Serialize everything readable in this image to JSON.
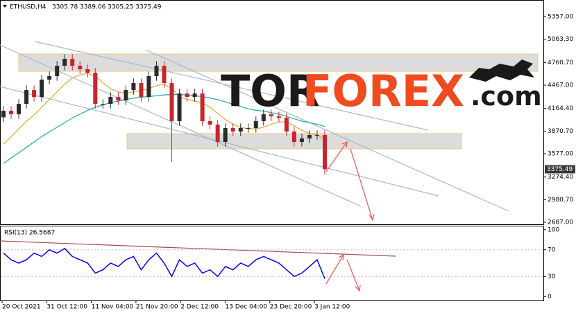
{
  "header": {
    "symbol": "ETHUSD,H4",
    "ohlc": "3305.78 3389.06 3305.25 3375.49"
  },
  "logo": {
    "part1": "TOR",
    "part2": "FOREX",
    "part3": ".com"
  },
  "chart_data": [
    {
      "type": "candlestick",
      "ylim": [
        2651,
        5555
      ],
      "yticks": [
        {
          "value": 5357,
          "label": "5357.00"
        },
        {
          "value": 5063.3,
          "label": "5063.30"
        },
        {
          "value": 4760.7,
          "label": "4760.70"
        },
        {
          "value": 4467,
          "label": "4467.00"
        },
        {
          "value": 4164.4,
          "label": "4164.40"
        },
        {
          "value": 3870.7,
          "label": "3870.70"
        },
        {
          "value": 3577,
          "label": "3577.00"
        },
        {
          "value": 3274.4,
          "label": "3274.40"
        },
        {
          "value": 2980.7,
          "label": "2980.70"
        },
        {
          "value": 2687,
          "label": "2687.00"
        }
      ],
      "time_labels": [
        "20 Oct 2021",
        "31 Oct 12:00",
        "11 Nov 04:00",
        "21 Nov 20:00",
        "2 Dec 12:00",
        "13 Dec 04:00",
        "23 Dec 20:00",
        "3 Jan 12:00"
      ],
      "up_color": "#2b2b2b",
      "down_color": "#c8252c",
      "open": [
        4050,
        4134,
        4089,
        4224,
        4404,
        4314,
        4539,
        4584,
        4719,
        4809,
        4719,
        4674,
        4629,
        4224,
        4224,
        4314,
        4269,
        4404,
        4494,
        4314,
        4584,
        4719,
        4494,
        4000,
        4359,
        4314,
        4359,
        4000,
        3955,
        3730,
        3910,
        3865,
        3910,
        3910,
        4000,
        4089,
        4062,
        4044,
        3865,
        3730,
        3775,
        3820,
        3820
      ],
      "high": [
        4194,
        4194,
        4284,
        4464,
        4464,
        4599,
        4644,
        4779,
        4869,
        4869,
        4779,
        4734,
        4689,
        4284,
        4374,
        4374,
        4464,
        4554,
        4554,
        4644,
        4779,
        4779,
        4554,
        4419,
        4419,
        4419,
        4419,
        4060,
        4015,
        3970,
        3970,
        3970,
        3970,
        4060,
        4149,
        4149,
        4122,
        4104,
        3925,
        3835,
        3880,
        3880,
        3880
      ],
      "low": [
        3990,
        4029,
        4029,
        4164,
        4254,
        4254,
        4479,
        4524,
        4659,
        4659,
        4614,
        4569,
        4164,
        4164,
        4164,
        4209,
        4209,
        4344,
        4254,
        4254,
        4524,
        4434,
        3470,
        3940,
        4254,
        4254,
        3940,
        3895,
        3670,
        3670,
        3805,
        3805,
        3850,
        3850,
        3940,
        4002,
        3984,
        3805,
        3670,
        3670,
        3715,
        3760,
        3305
      ],
      "close": [
        4134,
        4089,
        4224,
        4404,
        4314,
        4539,
        4584,
        4719,
        4809,
        4719,
        4674,
        4629,
        4224,
        4224,
        4314,
        4269,
        4404,
        4494,
        4314,
        4584,
        4719,
        4494,
        4000,
        4359,
        4314,
        4359,
        4000,
        3955,
        3730,
        3910,
        3865,
        3910,
        3910,
        4000,
        4089,
        4062,
        4044,
        3865,
        3730,
        3775,
        3820,
        3820,
        3375.49
      ],
      "price_tag": "3375.49",
      "series": [
        {
          "color": "#e8a33c",
          "values": [
            3700,
            3800,
            3900,
            4000,
            4080,
            4180,
            4280,
            4380,
            4480,
            4560,
            4600,
            4620,
            4580,
            4500,
            4420,
            4380,
            4360,
            4380,
            4400,
            4420,
            4460,
            4480,
            4420,
            4320,
            4280,
            4260,
            4240,
            4180,
            4100,
            4020,
            3960,
            3920,
            3900,
            3900,
            3920,
            3960,
            3990,
            3990,
            3940,
            3880,
            3840,
            3820,
            3760
          ]
        },
        {
          "color": "#1fa6a6",
          "values": [
            3450,
            3520,
            3590,
            3660,
            3730,
            3800,
            3860,
            3920,
            3980,
            4040,
            4090,
            4140,
            4180,
            4210,
            4240,
            4260,
            4280,
            4300,
            4310,
            4320,
            4330,
            4340,
            4345,
            4345,
            4340,
            4330,
            4320,
            4300,
            4280,
            4250,
            4220,
            4190,
            4160,
            4140,
            4130,
            4110,
            4090,
            4060,
            4030,
            4000,
            3980,
            3960,
            3930
          ]
        }
      ]
    },
    {
      "type": "line",
      "title": "RSI(13) 26.5687",
      "ylim": [
        -7,
        105
      ],
      "yticks": [
        100,
        70,
        30,
        0
      ],
      "levels": [
        70,
        30
      ],
      "color": "#0000ff",
      "values": [
        65,
        55,
        50,
        55,
        65,
        60,
        70,
        65,
        72,
        60,
        55,
        50,
        35,
        40,
        50,
        45,
        55,
        60,
        40,
        55,
        65,
        50,
        30,
        55,
        45,
        50,
        35,
        40,
        30,
        45,
        40,
        50,
        45,
        55,
        60,
        55,
        50,
        40,
        30,
        35,
        45,
        55,
        26.5687
      ]
    }
  ]
}
